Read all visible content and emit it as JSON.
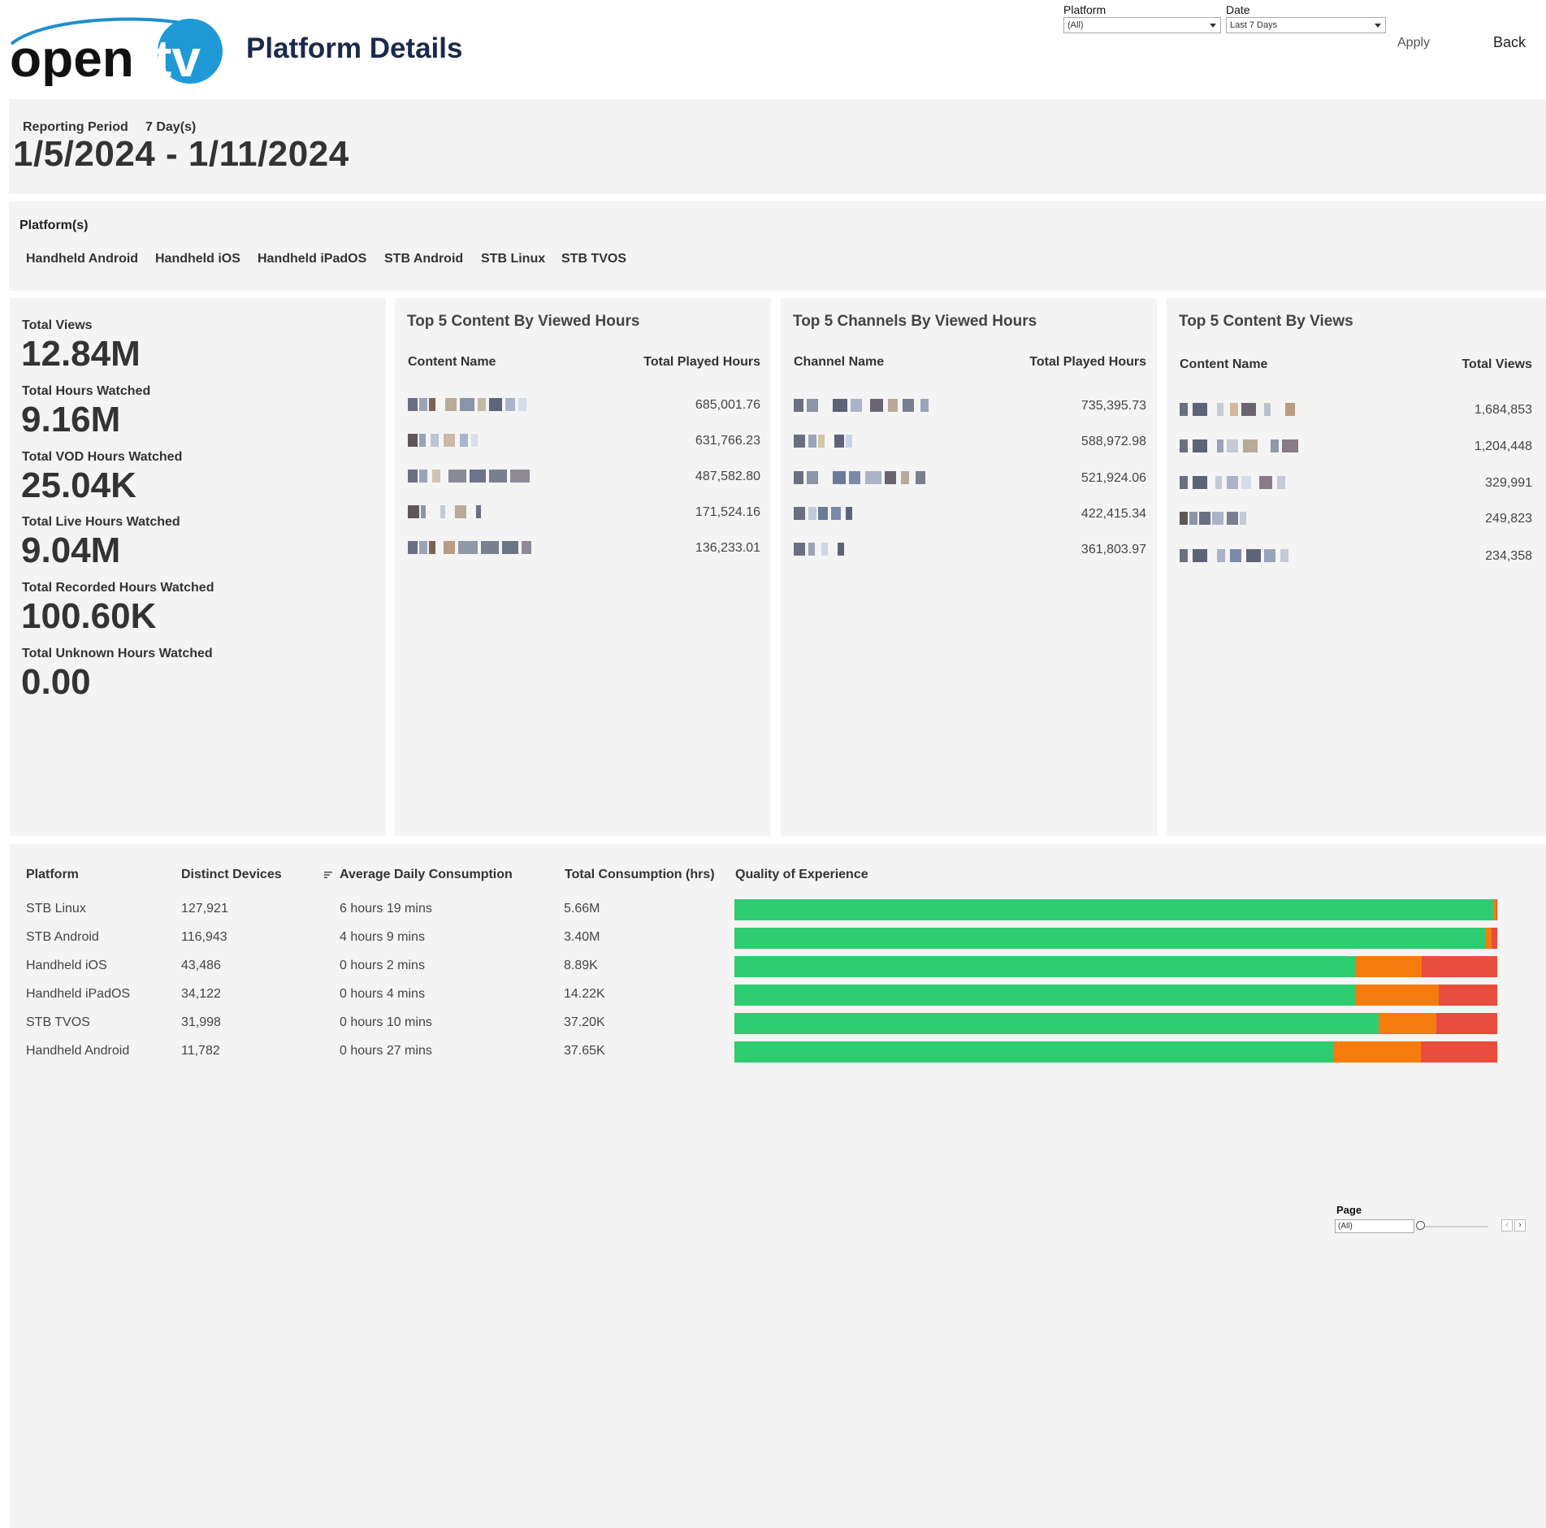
{
  "header": {
    "logo_text_left": "open",
    "logo_text_right": "tv",
    "title": "Platform Details",
    "apply_label": "Apply",
    "back_label": "Back"
  },
  "filters": {
    "platform": {
      "label": "Platform",
      "value": "(All)"
    },
    "date": {
      "label": "Date",
      "value": "Last 7 Days"
    }
  },
  "reporting": {
    "label": "Reporting Period",
    "days": "7 Day(s)",
    "range": "1/5/2024 - 1/11/2024"
  },
  "platforms": {
    "title": "Platform(s)",
    "items": [
      "Handheld Android",
      "Handheld iOS",
      "Handheld iPadOS",
      "STB Android",
      "STB Linux",
      "STB TVOS"
    ]
  },
  "kpis": [
    {
      "label": "Total Views",
      "value": "12.84M"
    },
    {
      "label": "Total Hours Watched",
      "value": "9.16M"
    },
    {
      "label": "Total VOD Hours Watched",
      "value": "25.04K"
    },
    {
      "label": "Total Live Hours Watched",
      "value": "9.04M"
    },
    {
      "label": "Total Recorded Hours Watched",
      "value": "100.60K"
    },
    {
      "label": "Total Unknown Hours Watched",
      "value": "0.00"
    }
  ],
  "top_content_hours": {
    "title": "Top 5 Content By Viewed Hours",
    "col_name": "Content Name",
    "col_value": "Total Played Hours",
    "values": [
      "685,001.76",
      "631,766.23",
      "487,582.80",
      "171,524.16",
      "136,233.01"
    ]
  },
  "top_channels_hours": {
    "title": "Top 5 Channels By Viewed Hours",
    "col_name": "Channel Name",
    "col_value": "Total Played Hours",
    "values": [
      "735,395.73",
      "588,972.98",
      "521,924.06",
      "422,415.34",
      "361,803.97"
    ]
  },
  "top_content_views": {
    "title": "Top 5 Content By Views",
    "col_name": "Content Name",
    "col_value": "Total Views",
    "values": [
      "1,684,853",
      "1,204,448",
      "329,991",
      "249,823",
      "234,358"
    ]
  },
  "platform_table": {
    "headers": {
      "platform": "Platform",
      "devices": "Distinct Devices",
      "avg": "Average Daily Consumption",
      "total": "Total Consumption (hrs)",
      "qoe": "Quality of Experience"
    },
    "rows": [
      {
        "platform": "STB Linux",
        "devices": "127,921",
        "avg": "6 hours 19 mins",
        "total": "5.66M",
        "qoe": [
          0.995,
          0.004,
          0.001
        ]
      },
      {
        "platform": "STB Android",
        "devices": "116,943",
        "avg": "4 hours 9 mins",
        "total": "3.40M",
        "qoe": [
          0.984,
          0.009,
          0.007
        ]
      },
      {
        "platform": "Handheld iOS",
        "devices": "43,486",
        "avg": "0 hours 2 mins",
        "total": "8.89K",
        "qoe": [
          0.814,
          0.087,
          0.099
        ]
      },
      {
        "platform": "Handheld iPadOS",
        "devices": "34,122",
        "avg": "0 hours 4 mins",
        "total": "14.22K",
        "qoe": [
          0.815,
          0.108,
          0.077
        ]
      },
      {
        "platform": "STB TVOS",
        "devices": "31,998",
        "avg": "0 hours 10 mins",
        "total": "37.20K",
        "qoe": [
          0.845,
          0.075,
          0.08
        ]
      },
      {
        "platform": "Handheld Android",
        "devices": "11,782",
        "avg": "0 hours 27 mins",
        "total": "37.65K",
        "qoe": [
          0.785,
          0.115,
          0.1
        ]
      }
    ],
    "qoe_colors": {
      "good": "#2ecc71",
      "medium": "#f57c0c",
      "poor": "#e74c3c"
    }
  },
  "pager": {
    "label": "Page",
    "value": "(All)"
  }
}
